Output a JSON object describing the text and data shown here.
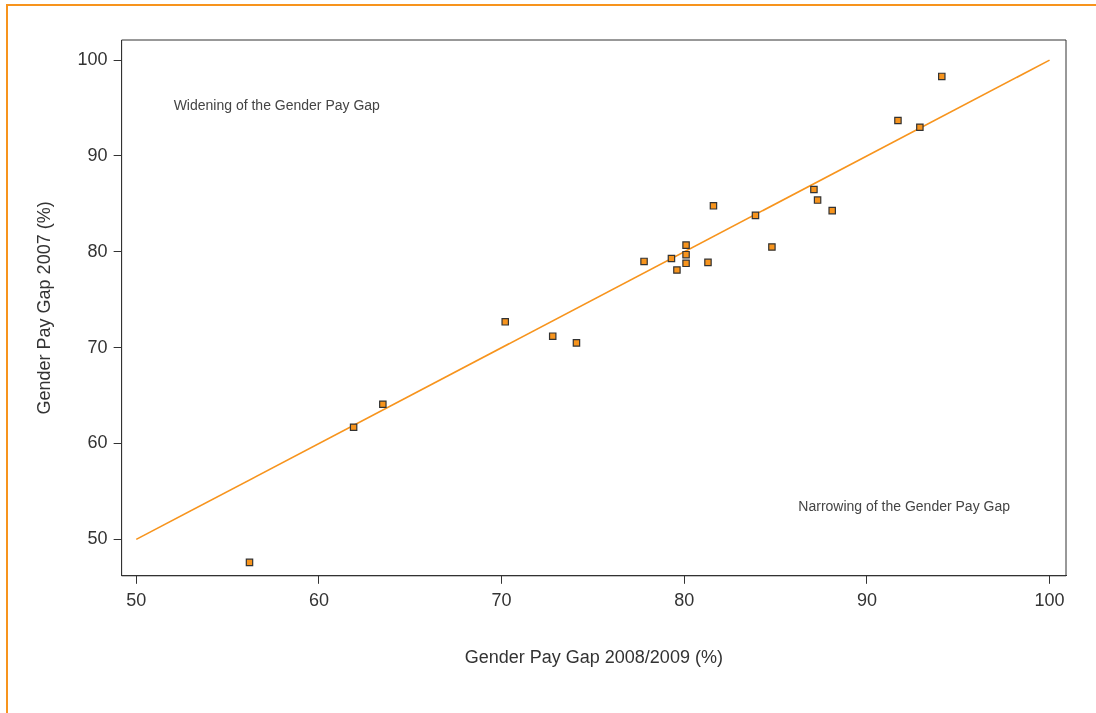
{
  "chart_data": {
    "type": "scatter",
    "xlabel": "Gender Pay Gap 2008/2009 (%)",
    "ylabel": "Gender Pay Gap 2007 (%)",
    "xlim": [
      49.2,
      100.9
    ],
    "ylim": [
      46.2,
      102.1
    ],
    "xticks": [
      50,
      60,
      70,
      80,
      90,
      100
    ],
    "yticks": [
      50,
      60,
      70,
      80,
      90,
      100
    ],
    "grid": false,
    "legend": false,
    "annotations": [
      "Widening of the Gender Pay Gap",
      "Narrowing of the Gender Pay Gap"
    ],
    "series": [
      {
        "marker": "square",
        "color": "#f7941d",
        "x": [
          56.2,
          61.9,
          63.5,
          70.2,
          72.8,
          74.1,
          77.8,
          79.3,
          79.6,
          80.1,
          80.1,
          80.1,
          81.3,
          81.6,
          83.9,
          84.8,
          87.1,
          87.3,
          88.1,
          91.7,
          92.9,
          94.1
        ],
        "values": [
          47.6,
          61.7,
          64.1,
          72.7,
          71.2,
          70.5,
          79.0,
          79.3,
          78.1,
          80.7,
          79.7,
          78.8,
          78.9,
          84.8,
          83.8,
          80.5,
          86.5,
          85.4,
          84.3,
          93.7,
          93.0,
          98.3
        ]
      },
      {
        "type": "line",
        "color": "#f7941d",
        "x": [
          50,
          100
        ],
        "values": [
          50,
          100
        ]
      }
    ]
  }
}
